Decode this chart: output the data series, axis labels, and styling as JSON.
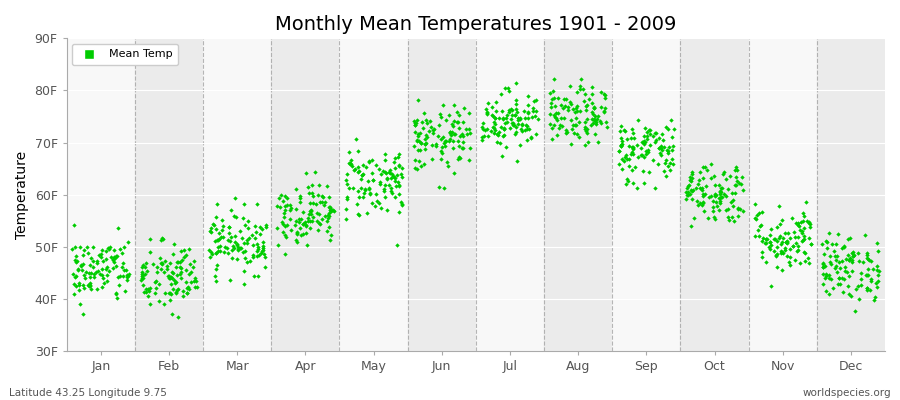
{
  "title": "Monthly Mean Temperatures 1901 - 2009",
  "ylabel": "Temperature",
  "ylim": [
    30,
    90
  ],
  "yticks": [
    30,
    40,
    50,
    60,
    70,
    80,
    90
  ],
  "ytick_labels": [
    "30F",
    "40F",
    "50F",
    "60F",
    "70F",
    "80F",
    "90F"
  ],
  "months": [
    "Jan",
    "Feb",
    "Mar",
    "Apr",
    "May",
    "Jun",
    "Jul",
    "Aug",
    "Sep",
    "Oct",
    "Nov",
    "Dec"
  ],
  "month_means": [
    45.5,
    44.0,
    51.0,
    56.5,
    62.5,
    70.5,
    74.5,
    75.0,
    68.5,
    60.5,
    51.5,
    46.0
  ],
  "month_stds": [
    3.2,
    3.5,
    3.0,
    3.0,
    3.5,
    3.2,
    2.8,
    2.8,
    3.2,
    3.0,
    3.2,
    3.2
  ],
  "n_years": 109,
  "marker_color": "#00CC00",
  "marker_size": 5,
  "bg_band_color": "#EBEBEB",
  "bg_white": "#F8F8F8",
  "plot_bg": "#F4F4F4",
  "grid_color": "#999999",
  "title_fontsize": 14,
  "axis_label_fontsize": 10,
  "tick_fontsize": 9,
  "legend_label": "Mean Temp",
  "bottom_left": "Latitude 43.25 Longitude 9.75",
  "bottom_right": "worldspecies.org",
  "seed": 42
}
